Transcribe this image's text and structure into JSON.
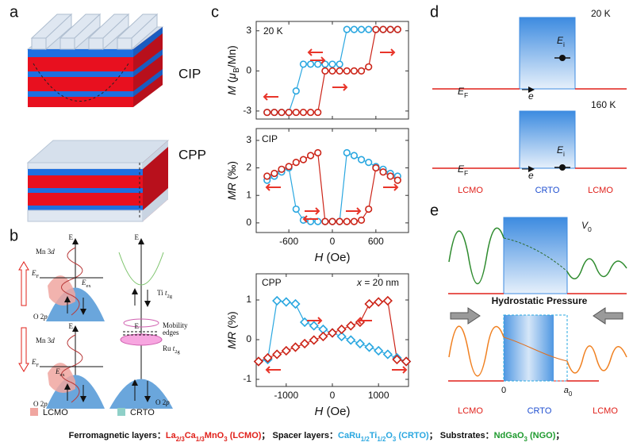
{
  "panel_labels": [
    "a",
    "b",
    "c",
    "d",
    "e"
  ],
  "panel_a": {
    "labels": [
      "CIP",
      "CPP"
    ]
  },
  "panel_b": {
    "energy_axes": [
      "E",
      "E",
      "E",
      "E"
    ],
    "mn3d": [
      [
        {
          "t": "Mn 3"
        },
        {
          "t": "d",
          "i": true
        }
      ],
      [
        {
          "t": "Mn 3"
        },
        {
          "t": "d",
          "i": true
        }
      ]
    ],
    "fermi": [
      [
        {
          "t": "E",
          "i": true
        },
        {
          "t": "F",
          "sub": true
        }
      ],
      [
        {
          "t": "E",
          "i": true
        },
        {
          "t": "F",
          "sub": true
        }
      ]
    ],
    "exchange": [
      [
        {
          "t": "E",
          "i": true
        },
        {
          "t": "ex",
          "sub": true
        }
      ],
      [
        {
          "t": "E",
          "i": true
        },
        {
          "t": "ex",
          "sub": true
        }
      ]
    ],
    "o2p": [
      [
        {
          "t": "O 2"
        },
        {
          "t": "p",
          "i": true
        }
      ],
      [
        {
          "t": "O 2"
        },
        {
          "t": "p",
          "i": true
        }
      ],
      [
        {
          "t": "O 2"
        },
        {
          "t": "p",
          "i": true
        }
      ]
    ],
    "ti": [
      {
        "t": "Ti "
      },
      {
        "t": "t",
        "i": true
      },
      {
        "t": "2g",
        "sub": true
      }
    ],
    "mobility": [
      "Mobility",
      "edges"
    ],
    "ru": [
      {
        "t": "Ru "
      },
      {
        "t": "t",
        "i": true
      },
      {
        "t": "2g",
        "sub": true
      }
    ],
    "legend": [
      "LCMO",
      "CRTO"
    ]
  },
  "panel_d": {
    "temperatures": [
      "20 K",
      "160 K"
    ],
    "fermi": [
      [
        {
          "t": "E",
          "i": true
        },
        {
          "t": "F",
          "sub": true
        }
      ],
      [
        {
          "t": "E",
          "i": true
        },
        {
          "t": "F",
          "sub": true
        }
      ]
    ],
    "electron": [
      "e",
      "e"
    ],
    "level": [
      [
        {
          "t": "E",
          "i": true
        },
        {
          "t": "i",
          "sub": true
        }
      ],
      [
        {
          "t": "E",
          "i": true
        },
        {
          "t": "i",
          "sub": true
        }
      ]
    ],
    "layers": [
      "LCMO",
      "CRTO",
      "LCMO"
    ]
  },
  "panel_e": {
    "barrier": [
      {
        "t": "V",
        "i": true
      },
      {
        "t": "0",
        "sub": true
      }
    ],
    "pressure": "Hydrostatic Pressure",
    "origin": "0",
    "width": [
      {
        "t": "a",
        "i": true
      },
      {
        "t": "0",
        "sub": true
      }
    ],
    "layers": [
      "LCMO",
      "CRTO",
      "LCMO"
    ]
  },
  "caption": [
    {
      "t": "Ferromagnetic layers：",
      "color": "#111111"
    },
    {
      "t": "La",
      "color": "#e0201a"
    },
    {
      "t": "2/3",
      "sub": true,
      "color": "#e0201a"
    },
    {
      "t": "Ca",
      "color": "#e0201a"
    },
    {
      "t": "1/3",
      "sub": true,
      "color": "#e0201a"
    },
    {
      "t": "MnO",
      "color": "#e0201a"
    },
    {
      "t": "3",
      "sub": true,
      "color": "#e0201a"
    },
    {
      "t": " (LCMO)",
      "color": "#e0201a"
    },
    {
      "t": "；  Spacer layers：",
      "color": "#111111"
    },
    {
      "t": "CaRu",
      "color": "#2aa7e0"
    },
    {
      "t": "1/2",
      "sub": true,
      "color": "#2aa7e0"
    },
    {
      "t": "Ti",
      "color": "#2aa7e0"
    },
    {
      "t": "1/2",
      "sub": true,
      "color": "#2aa7e0"
    },
    {
      "t": "O",
      "color": "#2aa7e0"
    },
    {
      "t": "3",
      "sub": true,
      "color": "#2aa7e0"
    },
    {
      "t": " (CRTO)",
      "color": "#2aa7e0"
    },
    {
      "t": "；  Substrates：",
      "color": "#111111"
    },
    {
      "t": "NdGaO",
      "color": "#1e9a2e"
    },
    {
      "t": "3",
      "sub": true,
      "color": "#1e9a2e"
    },
    {
      "t": " (NGO)",
      "color": "#1e9a2e"
    },
    {
      "t": "；",
      "color": "#111111"
    }
  ],
  "chart_data": [
    {
      "type": "line",
      "x": [
        -900,
        -800,
        -700,
        -600,
        -500,
        -400,
        -300,
        -200,
        -100,
        0,
        100,
        200,
        300,
        400,
        500,
        600,
        700,
        800,
        900
      ],
      "xlim": [
        -1050,
        1050
      ],
      "ylim": [
        -3.6,
        3.7
      ],
      "xticks": [
        -600,
        0,
        600
      ],
      "yticks": [
        3,
        0,
        -3
      ],
      "xtick_labels": false,
      "ylabel": [
        {
          "t": "M",
          "i": true
        },
        {
          "t": " ("
        },
        {
          "t": "μ",
          "i": true
        },
        {
          "t": "B",
          "sub": true
        },
        {
          "t": "/Mn)"
        }
      ],
      "annotations": [
        [
          {
            "t": "20 K"
          }
        ]
      ],
      "series": [
        {
          "color": "#2aa7e0",
          "marker": "circle",
          "values": [
            -3.1,
            -3.1,
            -3.1,
            -3.1,
            -1.5,
            0.5,
            0.5,
            0.5,
            0.5,
            0.5,
            0.5,
            3.1,
            3.1,
            3.1,
            3.1,
            3.1,
            3.1,
            3.1,
            3.1
          ]
        },
        {
          "color": "#cc2418",
          "marker": "circle",
          "values": [
            -3.1,
            -3.1,
            -3.1,
            -3.1,
            -3.1,
            -3.1,
            -3.1,
            -3.1,
            0,
            0,
            0,
            0,
            0,
            0,
            0.3,
            3.1,
            3.1,
            3.1,
            3.1
          ]
        }
      ]
    },
    {
      "type": "line",
      "x": [
        -900,
        -800,
        -700,
        -600,
        -500,
        -400,
        -300,
        -200,
        -100,
        0,
        100,
        200,
        300,
        400,
        500,
        600,
        700,
        800,
        900
      ],
      "xlim": [
        -1050,
        1050
      ],
      "ylim": [
        -0.35,
        3.43
      ],
      "xticks": [
        -600,
        0,
        600
      ],
      "yticks": [
        3,
        2,
        1,
        0
      ],
      "xtick_labels": true,
      "xlabel": [
        {
          "t": "H",
          "i": true
        },
        {
          "t": " (Oe)"
        }
      ],
      "ylabel": [
        {
          "t": "MR",
          "i": true
        },
        {
          "t": " (‰)"
        }
      ],
      "annotations": [
        [
          {
            "t": "CIP"
          }
        ]
      ],
      "series": [
        {
          "color": "#2aa7e0",
          "marker": "circle",
          "values": [
            1.55,
            1.7,
            1.85,
            2.0,
            0.5,
            0.1,
            0.05,
            0.05,
            0.05,
            0.05,
            0.05,
            2.55,
            2.45,
            2.3,
            2.2,
            2.05,
            1.95,
            1.8,
            1.7
          ]
        },
        {
          "color": "#cc2418",
          "marker": "circle",
          "values": [
            1.7,
            1.8,
            1.95,
            2.05,
            2.2,
            2.3,
            2.45,
            2.55,
            0.05,
            0.05,
            0.05,
            0.05,
            0.05,
            0.1,
            0.5,
            2.0,
            1.85,
            1.7,
            1.55
          ]
        }
      ]
    },
    {
      "type": "line",
      "x": [
        -1600,
        -1400,
        -1200,
        -1000,
        -800,
        -600,
        -400,
        -200,
        0,
        200,
        400,
        600,
        800,
        1000,
        1200,
        1400,
        1600
      ],
      "xlim": [
        -1650,
        1650
      ],
      "ylim": [
        -1.18,
        1.66
      ],
      "xticks": [
        -1000,
        0,
        1000
      ],
      "yticks": [
        1,
        0,
        -1
      ],
      "xtick_labels": true,
      "xlabel": [
        {
          "t": "H",
          "i": true
        },
        {
          "t": " (Oe)"
        }
      ],
      "ylabel": [
        {
          "t": "MR",
          "i": true
        },
        {
          "t": " (%)"
        }
      ],
      "annotations": [
        [
          {
            "t": "CPP"
          }
        ],
        [
          {
            "t": "x",
            "i": true
          },
          {
            "t": " = 20 nm"
          }
        ]
      ],
      "series": [
        {
          "color": "#2aa7e0",
          "marker": "diamond",
          "values": [
            -0.55,
            -0.5,
            0.98,
            0.95,
            0.9,
            0.44,
            0.35,
            0.26,
            0.17,
            0.08,
            -0.01,
            -0.1,
            -0.19,
            -0.28,
            -0.37,
            -0.46,
            -0.55
          ]
        },
        {
          "color": "#cc2418",
          "marker": "diamond",
          "values": [
            -0.55,
            -0.46,
            -0.37,
            -0.28,
            -0.19,
            -0.1,
            -0.01,
            0.08,
            0.17,
            0.26,
            0.35,
            0.44,
            0.9,
            0.95,
            0.98,
            -0.5,
            -0.55
          ]
        }
      ]
    }
  ]
}
